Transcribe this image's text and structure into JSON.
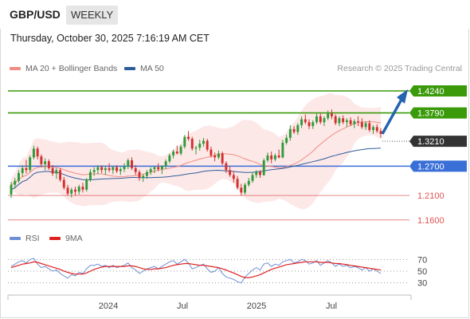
{
  "header": {
    "symbol": "GBP/USD",
    "timeframe": "WEEKLY",
    "timestamp": "Thursday, October 30, 2025 7:16:19 AM CET"
  },
  "legend": {
    "ma20_label": "MA 20 + Bollinger Bands",
    "ma20_color": "#f28b82",
    "ma50_label": "MA 50",
    "ma50_color": "#2e5c9a",
    "credit": "Research © 2025 Trading Central"
  },
  "rsi_legend": {
    "rsi_label": "RSI",
    "rsi_color": "#6d8fd6",
    "ma_label": "9MA",
    "ma_color": "#e02020"
  },
  "levels": [
    {
      "value": 1.424,
      "label": "1.4240",
      "kind": "resistance",
      "color": "#3a9a0a"
    },
    {
      "value": 1.379,
      "label": "1.3790",
      "kind": "resistance",
      "color": "#3a9a0a"
    },
    {
      "value": 1.321,
      "label": "1.3210",
      "kind": "pivot",
      "color": "#333333"
    },
    {
      "value": 1.27,
      "label": "1.2700",
      "kind": "support",
      "color": "#3a6fd8"
    },
    {
      "value": 1.21,
      "label": "1.2100",
      "kind": "support",
      "color": "#e05252"
    },
    {
      "value": 1.16,
      "label": "1.1600",
      "kind": "support",
      "color": "#e05252"
    }
  ],
  "chart_data": {
    "type": "candlestick",
    "price_range": [
      1.145,
      1.455
    ],
    "x_ticks": [
      "2024",
      "Jul",
      "2025",
      "Jul"
    ],
    "rsi_ticks": [
      "70",
      "50",
      "30"
    ],
    "rsi_range": [
      20,
      80
    ],
    "candles": [
      [
        1.212,
        1.238,
        1.205,
        1.232
      ],
      [
        1.232,
        1.246,
        1.224,
        1.24
      ],
      [
        1.24,
        1.262,
        1.236,
        1.256
      ],
      [
        1.256,
        1.272,
        1.248,
        1.266
      ],
      [
        1.266,
        1.283,
        1.255,
        1.262
      ],
      [
        1.262,
        1.292,
        1.258,
        1.288
      ],
      [
        1.288,
        1.312,
        1.284,
        1.306
      ],
      [
        1.306,
        1.31,
        1.284,
        1.29
      ],
      [
        1.29,
        1.294,
        1.27,
        1.274
      ],
      [
        1.274,
        1.286,
        1.262,
        1.28
      ],
      [
        1.28,
        1.284,
        1.262,
        1.266
      ],
      [
        1.266,
        1.272,
        1.25,
        1.255
      ],
      [
        1.255,
        1.266,
        1.244,
        1.262
      ],
      [
        1.262,
        1.266,
        1.238,
        1.242
      ],
      [
        1.242,
        1.248,
        1.222,
        1.226
      ],
      [
        1.226,
        1.232,
        1.21,
        1.214
      ],
      [
        1.214,
        1.226,
        1.206,
        1.222
      ],
      [
        1.222,
        1.228,
        1.21,
        1.218
      ],
      [
        1.218,
        1.232,
        1.212,
        1.228
      ],
      [
        1.228,
        1.236,
        1.216,
        1.222
      ],
      [
        1.222,
        1.246,
        1.218,
        1.242
      ],
      [
        1.242,
        1.264,
        1.238,
        1.258
      ],
      [
        1.258,
        1.268,
        1.25,
        1.262
      ],
      [
        1.262,
        1.272,
        1.254,
        1.268
      ],
      [
        1.268,
        1.272,
        1.256,
        1.262
      ],
      [
        1.262,
        1.27,
        1.252,
        1.266
      ],
      [
        1.266,
        1.276,
        1.258,
        1.262
      ],
      [
        1.262,
        1.27,
        1.254,
        1.268
      ],
      [
        1.268,
        1.272,
        1.256,
        1.26
      ],
      [
        1.26,
        1.268,
        1.252,
        1.264
      ],
      [
        1.264,
        1.276,
        1.258,
        1.27
      ],
      [
        1.27,
        1.286,
        1.264,
        1.282
      ],
      [
        1.282,
        1.288,
        1.262,
        1.266
      ],
      [
        1.266,
        1.272,
        1.252,
        1.258
      ],
      [
        1.258,
        1.262,
        1.24,
        1.246
      ],
      [
        1.246,
        1.254,
        1.238,
        1.25
      ],
      [
        1.25,
        1.262,
        1.244,
        1.258
      ],
      [
        1.258,
        1.268,
        1.252,
        1.264
      ],
      [
        1.264,
        1.27,
        1.256,
        1.268
      ],
      [
        1.268,
        1.276,
        1.26,
        1.264
      ],
      [
        1.264,
        1.272,
        1.254,
        1.27
      ],
      [
        1.27,
        1.284,
        1.264,
        1.28
      ],
      [
        1.28,
        1.296,
        1.276,
        1.292
      ],
      [
        1.292,
        1.304,
        1.286,
        1.3
      ],
      [
        1.3,
        1.312,
        1.294,
        1.296
      ],
      [
        1.296,
        1.314,
        1.292,
        1.31
      ],
      [
        1.31,
        1.334,
        1.306,
        1.33
      ],
      [
        1.33,
        1.342,
        1.322,
        1.326
      ],
      [
        1.326,
        1.33,
        1.302,
        1.306
      ],
      [
        1.306,
        1.312,
        1.294,
        1.308
      ],
      [
        1.308,
        1.324,
        1.302,
        1.316
      ],
      [
        1.316,
        1.328,
        1.31,
        1.322
      ],
      [
        1.322,
        1.326,
        1.3,
        1.304
      ],
      [
        1.304,
        1.31,
        1.288,
        1.292
      ],
      [
        1.292,
        1.298,
        1.28,
        1.288
      ],
      [
        1.288,
        1.302,
        1.284,
        1.296
      ],
      [
        1.296,
        1.3,
        1.272,
        1.276
      ],
      [
        1.276,
        1.28,
        1.256,
        1.262
      ],
      [
        1.262,
        1.27,
        1.248,
        1.252
      ],
      [
        1.252,
        1.26,
        1.236,
        1.244
      ],
      [
        1.244,
        1.25,
        1.222,
        1.226
      ],
      [
        1.226,
        1.234,
        1.21,
        1.216
      ],
      [
        1.216,
        1.236,
        1.212,
        1.232
      ],
      [
        1.232,
        1.246,
        1.228,
        1.24
      ],
      [
        1.24,
        1.258,
        1.236,
        1.252
      ],
      [
        1.252,
        1.262,
        1.246,
        1.258
      ],
      [
        1.258,
        1.262,
        1.246,
        1.252
      ],
      [
        1.252,
        1.286,
        1.25,
        1.282
      ],
      [
        1.282,
        1.298,
        1.278,
        1.292
      ],
      [
        1.292,
        1.3,
        1.276,
        1.284
      ],
      [
        1.284,
        1.296,
        1.28,
        1.292
      ],
      [
        1.292,
        1.304,
        1.286,
        1.288
      ],
      [
        1.288,
        1.324,
        1.286,
        1.318
      ],
      [
        1.318,
        1.334,
        1.314,
        1.328
      ],
      [
        1.328,
        1.354,
        1.322,
        1.346
      ],
      [
        1.346,
        1.352,
        1.336,
        1.34
      ],
      [
        1.34,
        1.358,
        1.334,
        1.354
      ],
      [
        1.354,
        1.372,
        1.348,
        1.366
      ],
      [
        1.366,
        1.376,
        1.356,
        1.36
      ],
      [
        1.36,
        1.366,
        1.346,
        1.352
      ],
      [
        1.352,
        1.364,
        1.346,
        1.36
      ],
      [
        1.36,
        1.38,
        1.356,
        1.372
      ],
      [
        1.372,
        1.378,
        1.356,
        1.36
      ],
      [
        1.36,
        1.372,
        1.352,
        1.368
      ],
      [
        1.368,
        1.384,
        1.364,
        1.378
      ],
      [
        1.378,
        1.386,
        1.366,
        1.372
      ],
      [
        1.372,
        1.376,
        1.354,
        1.358
      ],
      [
        1.358,
        1.372,
        1.352,
        1.368
      ],
      [
        1.368,
        1.374,
        1.356,
        1.36
      ],
      [
        1.36,
        1.368,
        1.35,
        1.364
      ],
      [
        1.364,
        1.37,
        1.352,
        1.356
      ],
      [
        1.356,
        1.366,
        1.348,
        1.362
      ],
      [
        1.362,
        1.372,
        1.352,
        1.36
      ],
      [
        1.36,
        1.368,
        1.346,
        1.35
      ],
      [
        1.35,
        1.362,
        1.344,
        1.358
      ],
      [
        1.358,
        1.364,
        1.34,
        1.344
      ],
      [
        1.344,
        1.354,
        1.336,
        1.35
      ],
      [
        1.35,
        1.356,
        1.338,
        1.342
      ],
      [
        1.342,
        1.348,
        1.328,
        1.336
      ]
    ],
    "rsi": [
      58,
      62,
      66,
      68,
      64,
      70,
      72,
      62,
      56,
      58,
      54,
      50,
      52,
      46,
      42,
      38,
      44,
      42,
      48,
      46,
      54,
      60,
      60,
      62,
      58,
      60,
      56,
      60,
      56,
      58,
      60,
      64,
      56,
      52,
      46,
      50,
      54,
      56,
      58,
      54,
      58,
      62,
      66,
      68,
      62,
      66,
      70,
      64,
      54,
      56,
      60,
      62,
      54,
      48,
      50,
      56,
      46,
      40,
      38,
      36,
      32,
      30,
      40,
      46,
      52,
      56,
      52,
      62,
      64,
      58,
      62,
      60,
      66,
      68,
      70,
      64,
      66,
      70,
      68,
      62,
      64,
      68,
      60,
      64,
      68,
      64,
      58,
      62,
      58,
      60,
      56,
      58,
      56,
      52,
      56,
      50,
      54,
      50,
      46
    ],
    "rsi_ma": [
      56,
      58,
      60,
      62,
      63,
      64,
      66,
      65,
      63,
      61,
      59,
      57,
      55,
      53,
      50,
      48,
      46,
      45,
      45,
      45,
      47,
      50,
      53,
      55,
      57,
      58,
      58,
      58,
      58,
      58,
      58,
      59,
      59,
      58,
      56,
      54,
      53,
      53,
      54,
      54,
      55,
      56,
      58,
      60,
      61,
      62,
      63,
      63,
      62,
      61,
      60,
      60,
      59,
      58,
      57,
      56,
      54,
      52,
      49,
      47,
      44,
      41,
      39,
      39,
      40,
      42,
      44,
      47,
      50,
      53,
      55,
      57,
      59,
      61,
      62,
      63,
      64,
      65,
      66,
      66,
      66,
      66,
      65,
      65,
      65,
      64,
      63,
      63,
      62,
      61,
      60,
      59,
      58,
      57,
      56,
      55,
      54,
      53,
      52
    ]
  }
}
